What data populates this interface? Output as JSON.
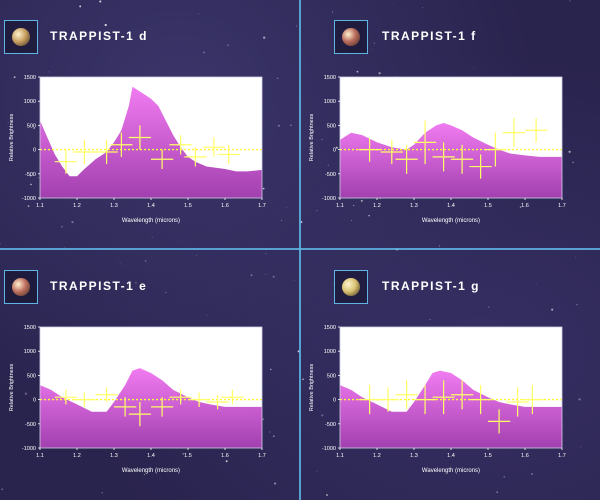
{
  "colors": {
    "background": "#29244e",
    "divider": "#5fb6e6",
    "spectrum_fill": "#d04fd6",
    "data_points": "#ffff66",
    "zero_line": "#ffff33"
  },
  "chart_data": [
    {
      "type": "area",
      "title": "TRAPPIST-1 d",
      "icon": "planet-d-icon",
      "planet_color": "#c8a060",
      "xlabel": "Wavelength (microns)",
      "ylabel": "Relative Brightness",
      "xlim": [
        1.1,
        1.7
      ],
      "ylim": [
        -1000,
        1500
      ],
      "xticks": [
        "1.1",
        "1.2",
        "1.3",
        "1.4",
        "1.5",
        "1.6",
        "1.7"
      ],
      "yticks": [
        "1500",
        "1000",
        "500",
        "0",
        "-500",
        "-1000"
      ],
      "model_spectrum": {
        "x": [
          1.1,
          1.12,
          1.14,
          1.16,
          1.18,
          1.2,
          1.22,
          1.25,
          1.28,
          1.3,
          1.32,
          1.34,
          1.35,
          1.36,
          1.38,
          1.4,
          1.42,
          1.44,
          1.46,
          1.48,
          1.5,
          1.52,
          1.55,
          1.58,
          1.6,
          1.63,
          1.66,
          1.7
        ],
        "y": [
          600,
          250,
          -100,
          -350,
          -550,
          -550,
          -400,
          -200,
          -50,
          150,
          400,
          900,
          1300,
          1250,
          1150,
          1050,
          900,
          600,
          300,
          50,
          -150,
          -250,
          -350,
          -380,
          -400,
          -450,
          -450,
          -420
        ]
      },
      "observations": [
        {
          "x": 1.17,
          "y": -250,
          "xerr": 0.03,
          "yerr": 250
        },
        {
          "x": 1.22,
          "y": -50,
          "xerr": 0.03,
          "yerr": 250
        },
        {
          "x": 1.28,
          "y": -50,
          "xerr": 0.03,
          "yerr": 250
        },
        {
          "x": 1.32,
          "y": 100,
          "xerr": 0.03,
          "yerr": 250
        },
        {
          "x": 1.37,
          "y": 250,
          "xerr": 0.03,
          "yerr": 250
        },
        {
          "x": 1.43,
          "y": -200,
          "xerr": 0.03,
          "yerr": 200
        },
        {
          "x": 1.48,
          "y": 100,
          "xerr": 0.03,
          "yerr": 200
        },
        {
          "x": 1.52,
          "y": -150,
          "xerr": 0.03,
          "yerr": 200
        },
        {
          "x": 1.57,
          "y": 50,
          "xerr": 0.03,
          "yerr": 200
        },
        {
          "x": 1.61,
          "y": -100,
          "xerr": 0.03,
          "yerr": 200
        }
      ]
    },
    {
      "type": "area",
      "title": "TRAPPIST-1 f",
      "icon": "planet-f-icon",
      "planet_color": "#b86a5c",
      "xlabel": "Wavelength (microns)",
      "ylabel": "Relative Brightness",
      "xlim": [
        1.1,
        1.7
      ],
      "ylim": [
        -1000,
        1500
      ],
      "xticks": [
        "1.1",
        "1.2",
        "1.3",
        "1.4",
        "1.5",
        "1.6",
        "1.7"
      ],
      "yticks": [
        "1500",
        "1000",
        "500",
        "0",
        "-500",
        "-1000"
      ],
      "model_spectrum": {
        "x": [
          1.1,
          1.13,
          1.16,
          1.2,
          1.24,
          1.28,
          1.3,
          1.33,
          1.36,
          1.38,
          1.4,
          1.43,
          1.46,
          1.5,
          1.53,
          1.56,
          1.6,
          1.64,
          1.7
        ],
        "y": [
          200,
          350,
          300,
          150,
          50,
          0,
          100,
          350,
          500,
          550,
          500,
          400,
          250,
          100,
          0,
          -80,
          -120,
          -150,
          -150
        ]
      },
      "observations": [
        {
          "x": 1.18,
          "y": 0,
          "xerr": 0.03,
          "yerr": 250
        },
        {
          "x": 1.24,
          "y": -50,
          "xerr": 0.03,
          "yerr": 250
        },
        {
          "x": 1.28,
          "y": -200,
          "xerr": 0.03,
          "yerr": 300
        },
        {
          "x": 1.33,
          "y": 150,
          "xerr": 0.03,
          "yerr": 450
        },
        {
          "x": 1.38,
          "y": -150,
          "xerr": 0.03,
          "yerr": 300
        },
        {
          "x": 1.43,
          "y": -200,
          "xerr": 0.03,
          "yerr": 300
        },
        {
          "x": 1.48,
          "y": -350,
          "xerr": 0.03,
          "yerr": 250
        },
        {
          "x": 1.52,
          "y": 0,
          "xerr": 0.03,
          "yerr": 350
        },
        {
          "x": 1.57,
          "y": 350,
          "xerr": 0.03,
          "yerr": 300
        },
        {
          "x": 1.63,
          "y": 400,
          "xerr": 0.03,
          "yerr": 250
        }
      ]
    },
    {
      "type": "area",
      "title": "TRAPPIST-1 e",
      "icon": "planet-e-icon",
      "planet_color": "#c07060",
      "xlabel": "Wavelength (microns)",
      "ylabel": "Relative Brightness",
      "xlim": [
        1.1,
        1.7
      ],
      "ylim": [
        -1000,
        1500
      ],
      "xticks": [
        "1.1",
        "1.2",
        "1.3",
        "1.4",
        "1.5",
        "1.6",
        "1.7"
      ],
      "yticks": [
        "1500",
        "1000",
        "500",
        "0",
        "-500",
        "-1000"
      ],
      "model_spectrum": {
        "x": [
          1.1,
          1.13,
          1.16,
          1.2,
          1.24,
          1.28,
          1.3,
          1.33,
          1.35,
          1.37,
          1.4,
          1.43,
          1.46,
          1.5,
          1.53,
          1.56,
          1.6,
          1.64,
          1.7
        ],
        "y": [
          300,
          200,
          50,
          -100,
          -250,
          -250,
          -50,
          300,
          600,
          650,
          550,
          400,
          200,
          50,
          -50,
          -100,
          -150,
          -150,
          -150
        ]
      },
      "observations": [
        {
          "x": 1.17,
          "y": 50,
          "xerr": 0.03,
          "yerr": 150
        },
        {
          "x": 1.22,
          "y": 0,
          "xerr": 0.03,
          "yerr": 150
        },
        {
          "x": 1.28,
          "y": 100,
          "xerr": 0.03,
          "yerr": 150
        },
        {
          "x": 1.33,
          "y": -150,
          "xerr": 0.03,
          "yerr": 200
        },
        {
          "x": 1.37,
          "y": -300,
          "xerr": 0.03,
          "yerr": 250
        },
        {
          "x": 1.43,
          "y": -150,
          "xerr": 0.03,
          "yerr": 200
        },
        {
          "x": 1.48,
          "y": 50,
          "xerr": 0.03,
          "yerr": 150
        },
        {
          "x": 1.53,
          "y": 0,
          "xerr": 0.03,
          "yerr": 150
        },
        {
          "x": 1.58,
          "y": -50,
          "xerr": 0.03,
          "yerr": 150
        },
        {
          "x": 1.62,
          "y": 50,
          "xerr": 0.03,
          "yerr": 150
        }
      ]
    },
    {
      "type": "area",
      "title": "TRAPPIST-1 g",
      "icon": "planet-g-icon",
      "planet_color": "#d8c270",
      "xlabel": "Wavelength (microns)",
      "ylabel": "Relative Brightness",
      "xlim": [
        1.1,
        1.7
      ],
      "ylim": [
        -1000,
        1500
      ],
      "xticks": [
        "1.1",
        "1.2",
        "1.3",
        "1.4",
        "1.5",
        "1.6",
        "1.7"
      ],
      "yticks": [
        "1500",
        "1000",
        "500",
        "0",
        "-500",
        "-1000"
      ],
      "model_spectrum": {
        "x": [
          1.1,
          1.13,
          1.16,
          1.2,
          1.24,
          1.28,
          1.3,
          1.33,
          1.35,
          1.37,
          1.4,
          1.43,
          1.46,
          1.5,
          1.53,
          1.56,
          1.6,
          1.64,
          1.7
        ],
        "y": [
          300,
          200,
          50,
          -100,
          -250,
          -250,
          -50,
          300,
          550,
          600,
          550,
          400,
          200,
          50,
          -50,
          -100,
          -150,
          -150,
          -150
        ]
      },
      "observations": [
        {
          "x": 1.18,
          "y": 0,
          "xerr": 0.03,
          "yerr": 300
        },
        {
          "x": 1.23,
          "y": 0,
          "xerr": 0.03,
          "yerr": 250
        },
        {
          "x": 1.28,
          "y": 100,
          "xerr": 0.03,
          "yerr": 300
        },
        {
          "x": 1.33,
          "y": 0,
          "xerr": 0.03,
          "yerr": 300
        },
        {
          "x": 1.38,
          "y": 50,
          "xerr": 0.03,
          "yerr": 350
        },
        {
          "x": 1.43,
          "y": 100,
          "xerr": 0.03,
          "yerr": 300
        },
        {
          "x": 1.48,
          "y": 0,
          "xerr": 0.03,
          "yerr": 300
        },
        {
          "x": 1.53,
          "y": -450,
          "xerr": 0.03,
          "yerr": 250
        },
        {
          "x": 1.58,
          "y": -50,
          "xerr": 0.03,
          "yerr": 300
        },
        {
          "x": 1.62,
          "y": 0,
          "xerr": 0.03,
          "yerr": 300
        }
      ]
    }
  ]
}
